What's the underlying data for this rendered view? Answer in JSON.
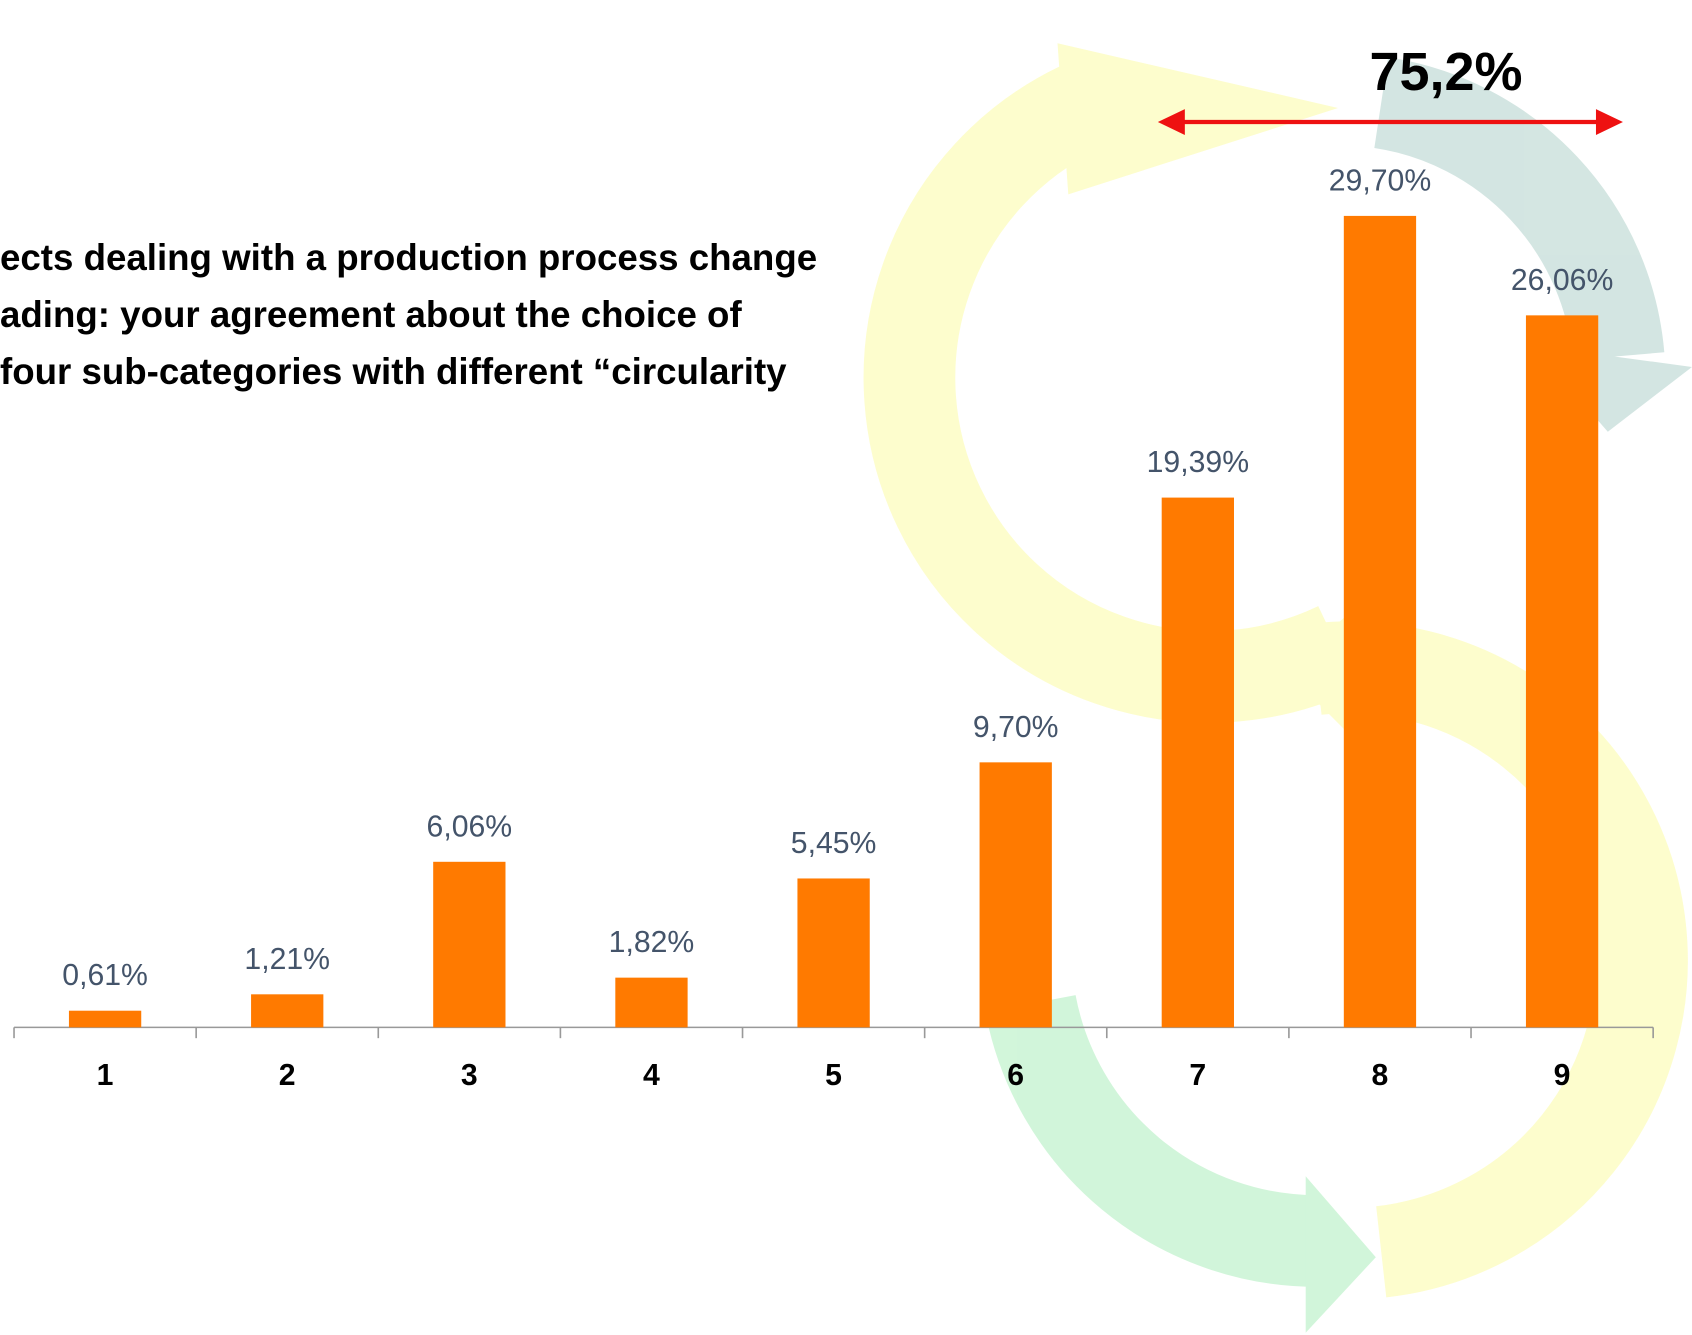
{
  "chart_data": {
    "type": "bar",
    "title_lines": [
      "ects dealing with a production process change",
      "ading: your agreement about the choice of",
      "four sub-categories with different “circularity"
    ],
    "categories": [
      "1",
      "2",
      "3",
      "4",
      "5",
      "6",
      "7",
      "8",
      "9"
    ],
    "values": [
      0.61,
      1.21,
      6.06,
      1.82,
      5.45,
      9.7,
      19.39,
      29.7,
      26.06
    ],
    "value_labels": [
      "0,61%",
      "1,21%",
      "6,06%",
      "1,82%",
      "5,45%",
      "9,70%",
      "19,39%",
      "29,70%",
      "26,06%"
    ],
    "color": "#ff7a00",
    "annotation": "75,2%"
  }
}
